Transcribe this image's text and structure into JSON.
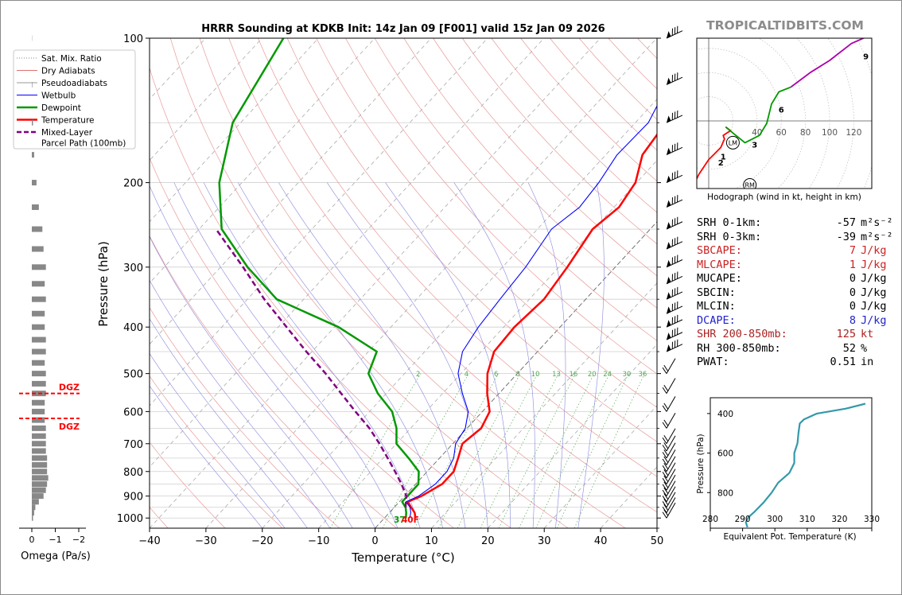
{
  "site": {
    "watermark": "TROPICALTIDBITS.COM"
  },
  "skewt": {
    "title": "HRRR Sounding at KDKB Init: 14z Jan 09 [F001] valid 15z Jan 09 2026",
    "xlabel": "Temperature (°C)",
    "ylabel": "Pressure (hPa)",
    "xticks": [
      "−40",
      "−30",
      "−20",
      "−10",
      "0",
      "10",
      "20",
      "30",
      "40",
      "50"
    ],
    "yticks": [
      "100",
      "200",
      "300",
      "400",
      "500",
      "600",
      "700",
      "800",
      "900",
      "1000"
    ],
    "mixing_ratio_labels": [
      "2",
      "4",
      "6",
      "8",
      "10",
      "13",
      "16",
      "20",
      "24",
      "30",
      "36"
    ],
    "surface_labels": {
      "dewpoint": "37",
      "temperature": "40F"
    },
    "colors": {
      "temperature": "#ff0000",
      "dewpoint": "#009900",
      "wetbulb": "#0000ff",
      "parcel": "#800080"
    }
  },
  "legend": {
    "items": [
      {
        "label": "Sat. Mix. Ratio",
        "style": "dotted",
        "color": "#888888"
      },
      {
        "label": "Dry Adiabats",
        "style": "solid",
        "color": "#e07070"
      },
      {
        "label": "Pseudoadiabats",
        "style": "solid",
        "color": "#999999"
      },
      {
        "label": "Wetbulb",
        "style": "solid",
        "color": "#0000ff"
      },
      {
        "label": "Dewpoint",
        "style": "solid",
        "color": "#009900"
      },
      {
        "label": "Temperature",
        "style": "solid",
        "color": "#ff0000"
      },
      {
        "label": "Mixed-Layer",
        "style": "dashed",
        "color": "#800080"
      },
      {
        "label": "Parcel Path (100mb)",
        "style": "none",
        "color": "#800080"
      }
    ]
  },
  "omega": {
    "xlabel": "Omega (Pa/s)",
    "xticks": [
      "0",
      "−1",
      "−2"
    ],
    "dgz_label": "DGZ"
  },
  "hodograph": {
    "caption": "Hodograph (wind in kt, height in km)",
    "ring_labels": [
      "40",
      "60",
      "80",
      "100",
      "120"
    ],
    "height_labels": [
      "1",
      "2",
      "3",
      "6",
      "9"
    ],
    "storm_labels": [
      "LM",
      "RM"
    ]
  },
  "stats": [
    {
      "label": "SRH 0-1km:",
      "value": "-57",
      "unit": "m²s⁻²",
      "color": "#000000"
    },
    {
      "label": "SRH 0-3km:",
      "value": "-39",
      "unit": "m²s⁻²",
      "color": "#000000"
    },
    {
      "label": "SBCAPE:",
      "value": "7",
      "unit": "J/kg",
      "color": "#cc2222"
    },
    {
      "label": "MLCAPE:",
      "value": "1",
      "unit": "J/kg",
      "color": "#cc2222"
    },
    {
      "label": "MUCAPE:",
      "value": "0",
      "unit": "J/kg",
      "color": "#000000"
    },
    {
      "label": "SBCIN:",
      "value": "0",
      "unit": "J/kg",
      "color": "#000000"
    },
    {
      "label": "MLCIN:",
      "value": "0",
      "unit": "J/kg",
      "color": "#000000"
    },
    {
      "label": "DCAPE:",
      "value": "8",
      "unit": "J/kg",
      "color": "#2222cc"
    },
    {
      "label": "SHR 200-850mb:",
      "value": "125",
      "unit": "kt",
      "color": "#aa2222"
    },
    {
      "label": "RH 300-850mb:",
      "value": "52",
      "unit": "%",
      "color": "#000000"
    },
    {
      "label": "PWAT:",
      "value": "0.51",
      "unit": "in",
      "color": "#000000"
    }
  ],
  "theta_e": {
    "xlabel": "Equivalent Pot. Temperature (K)",
    "ylabel": "Pressure (hPa)",
    "xticks": [
      "280",
      "290",
      "300",
      "310",
      "320",
      "330"
    ],
    "yticks": [
      "400",
      "600",
      "800"
    ]
  },
  "chart_data": [
    {
      "type": "line",
      "title": "HRRR Sounding at KDKB Init: 14z Jan 09 [F001] valid 15z Jan 09 2026",
      "xlabel": "Temperature (°C)",
      "ylabel": "Pressure (hPa)",
      "xlim": [
        -40,
        50
      ],
      "ylim": [
        1050,
        100
      ],
      "series": [
        {
          "name": "Temperature",
          "points": [
            [
              1000,
              5.5
            ],
            [
              975,
              4.5
            ],
            [
              950,
              3
            ],
            [
              925,
              1.5
            ],
            [
              900,
              3
            ],
            [
              850,
              4.7
            ],
            [
              800,
              4.7
            ],
            [
              750,
              3.3
            ],
            [
              700,
              1.7
            ],
            [
              650,
              2.5
            ],
            [
              600,
              1.3
            ],
            [
              550,
              -2.1
            ],
            [
              500,
              -5.3
            ],
            [
              450,
              -7.7
            ],
            [
              400,
              -8.1
            ],
            [
              350,
              -7.4
            ],
            [
              300,
              -8.5
            ],
            [
              250,
              -10.2
            ],
            [
              225,
              -9.1
            ],
            [
              200,
              -10.2
            ],
            [
              175,
              -13.5
            ],
            [
              150,
              -14.6
            ],
            [
              125,
              -17.8
            ],
            [
              100,
              -22.5
            ]
          ]
        },
        {
          "name": "Wetbulb",
          "points": [
            [
              1000,
              4.5
            ],
            [
              975,
              3.8
            ],
            [
              950,
              2.8
            ],
            [
              925,
              1.2
            ],
            [
              900,
              2.5
            ],
            [
              850,
              3.5
            ],
            [
              800,
              3.5
            ],
            [
              750,
              2.5
            ],
            [
              700,
              0.5
            ],
            [
              650,
              -0.3
            ],
            [
              600,
              -2.5
            ],
            [
              550,
              -6.5
            ],
            [
              500,
              -10.5
            ],
            [
              450,
              -13.3
            ],
            [
              400,
              -14.5
            ],
            [
              350,
              -15.2
            ],
            [
              300,
              -15.9
            ],
            [
              250,
              -17.5
            ],
            [
              225,
              -16.1
            ],
            [
              200,
              -16.7
            ],
            [
              175,
              -18
            ],
            [
              150,
              -17.7
            ],
            [
              125,
              -20.4
            ],
            [
              100,
              -23.9
            ]
          ]
        },
        {
          "name": "Dewpoint",
          "points": [
            [
              1000,
              3.8
            ],
            [
              975,
              3
            ],
            [
              950,
              2
            ],
            [
              925,
              0.5
            ],
            [
              900,
              0.5
            ],
            [
              850,
              0.5
            ],
            [
              800,
              -1.5
            ],
            [
              750,
              -5.5
            ],
            [
              700,
              -10
            ],
            [
              650,
              -12.5
            ],
            [
              600,
              -16
            ],
            [
              550,
              -21.5
            ],
            [
              500,
              -26.4
            ],
            [
              450,
              -28.5
            ],
            [
              400,
              -39.3
            ],
            [
              350,
              -54.8
            ],
            [
              300,
              -65.2
            ],
            [
              250,
              -76
            ],
            [
              200,
              -84
            ],
            [
              150,
              -91.4
            ],
            [
              100,
              -96.2
            ]
          ]
        },
        {
          "name": "Mixed-Layer Parcel Path (100mb)",
          "points": [
            [
              950,
              2
            ],
            [
              900,
              0.3
            ],
            [
              850,
              -2.5
            ],
            [
              800,
              -5.7
            ],
            [
              750,
              -9.2
            ],
            [
              700,
              -13
            ],
            [
              650,
              -17.3
            ],
            [
              600,
              -22.5
            ],
            [
              550,
              -28
            ],
            [
              500,
              -34
            ],
            [
              450,
              -41
            ],
            [
              400,
              -48.5
            ],
            [
              350,
              -57
            ],
            [
              300,
              -66
            ],
            [
              250,
              -77
            ]
          ]
        }
      ],
      "surface": {
        "temperature_f": 40,
        "dewpoint_f": 37
      }
    },
    {
      "type": "bar",
      "title": "Omega",
      "xlabel": "Omega (Pa/s)",
      "xlim": [
        0.3,
        -2.2
      ],
      "pressure_levels": [
        1000,
        975,
        950,
        925,
        900,
        875,
        850,
        825,
        800,
        775,
        750,
        725,
        700,
        675,
        650,
        625,
        600,
        575,
        550,
        525,
        500,
        475,
        450,
        425,
        400,
        375,
        350,
        325,
        300,
        275,
        250,
        225,
        200,
        175,
        150,
        125,
        100
      ],
      "values": [
        -0.05,
        -0.1,
        -0.15,
        -0.3,
        -0.5,
        -0.6,
        -0.65,
        -0.7,
        -0.65,
        -0.65,
        -0.65,
        -0.6,
        -0.6,
        -0.6,
        -0.6,
        -0.55,
        -0.55,
        -0.55,
        -0.6,
        -0.6,
        -0.6,
        -0.55,
        -0.6,
        -0.6,
        -0.55,
        -0.55,
        -0.6,
        -0.55,
        -0.6,
        -0.5,
        -0.45,
        -0.3,
        -0.2,
        -0.1,
        -0.05,
        -0.02,
        -0.01
      ],
      "dgz": [
        550,
        620
      ]
    },
    {
      "type": "line",
      "title": "Hodograph",
      "units": "kt",
      "series": [
        {
          "name": "0-1 km",
          "color": "#ff0000",
          "points": [
            [
              -10,
              -48
            ],
            [
              -8,
              -44
            ],
            [
              -4,
              -38
            ],
            [
              0,
              -32
            ],
            [
              4,
              -28
            ],
            [
              10,
              -22
            ],
            [
              13,
              -15
            ],
            [
              12,
              -12
            ],
            [
              18,
              -8
            ],
            [
              14,
              -5
            ]
          ]
        },
        {
          "name": "1-3 km",
          "color": "#009900",
          "points": [
            [
              14,
              -5
            ],
            [
              20,
              -10
            ],
            [
              30,
              -18
            ],
            [
              42,
              -12
            ],
            [
              48,
              -2
            ],
            [
              52,
              14
            ],
            [
              58,
              24
            ],
            [
              68,
              28
            ]
          ]
        },
        {
          "name": "3-6 km",
          "color": "#aa00aa",
          "points": [
            [
              68,
              28
            ],
            [
              84,
              40
            ],
            [
              100,
              50
            ],
            [
              118,
              64
            ],
            [
              136,
              72
            ]
          ]
        },
        {
          "name": "6-9 km",
          "color": "#0000ff",
          "points": [
            [
              136,
              72
            ],
            [
              150,
              72
            ],
            [
              160,
              75
            ],
            [
              166,
              82
            ],
            [
              130,
              76
            ]
          ]
        }
      ],
      "labels": [
        "1",
        "2",
        "3",
        "6",
        "9"
      ],
      "storm_motion": {
        "LM": [
          20,
          -18
        ],
        "RM": [
          34,
          -53
        ]
      }
    },
    {
      "type": "line",
      "title": "Equivalent Potential Temperature",
      "xlabel": "Equivalent Pot. Temperature (K)",
      "ylabel": "Pressure (hPa)",
      "xlim": [
        280,
        330
      ],
      "ylim": [
        980,
        320
      ],
      "series": [
        {
          "name": "theta-e",
          "points": [
            [
              975,
              291.5
            ],
            [
              950,
              291
            ],
            [
              925,
              291.8
            ],
            [
              900,
              293.5
            ],
            [
              850,
              296.5
            ],
            [
              800,
              299
            ],
            [
              750,
              301
            ],
            [
              700,
              304.5
            ],
            [
              650,
              306
            ],
            [
              600,
              306
            ],
            [
              550,
              307
            ],
            [
              500,
              307.3
            ],
            [
              450,
              307.7
            ],
            [
              430,
              309
            ],
            [
              400,
              313
            ],
            [
              375,
              322
            ],
            [
              350,
              328
            ]
          ]
        }
      ]
    }
  ]
}
